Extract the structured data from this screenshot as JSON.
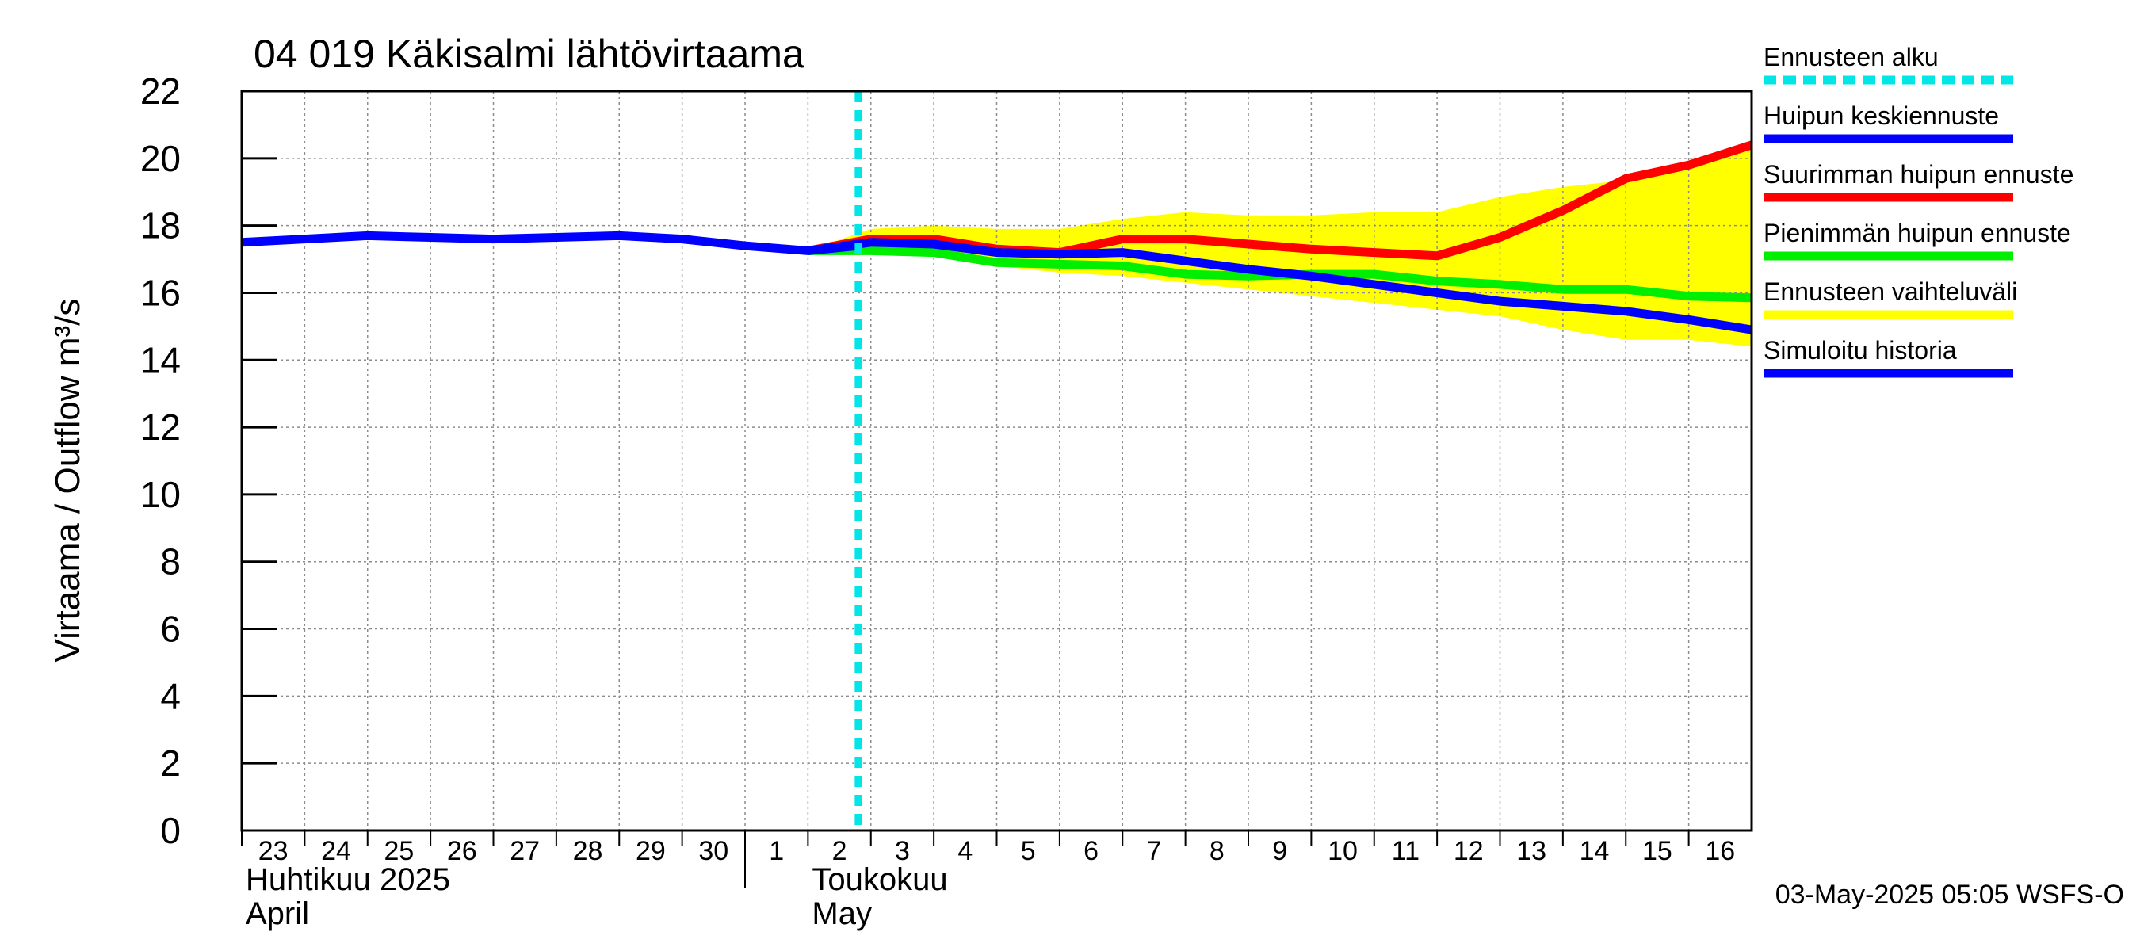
{
  "chart_data": {
    "type": "line",
    "title": "04 019 Käkisalmi lähtövirtaama",
    "ylabel": "Virtaama / Outflow    m³/s",
    "ylim": [
      0,
      22
    ],
    "yticks": [
      "0",
      "2",
      "4",
      "6",
      "8",
      "10",
      "12",
      "14",
      "16",
      "18",
      "20",
      "22"
    ],
    "x_days": [
      "23",
      "24",
      "25",
      "26",
      "27",
      "28",
      "29",
      "30",
      "1",
      "2",
      "3",
      "4",
      "5",
      "6",
      "7",
      "8",
      "9",
      "10",
      "11",
      "12",
      "13",
      "14",
      "15",
      "16"
    ],
    "month_labels": [
      {
        "fi": "Huhtikuu  2025",
        "en": "April"
      },
      {
        "fi": "Toukokuu",
        "en": "May"
      }
    ],
    "forecast_start_day_index": 9.8,
    "series": [
      {
        "name": "Ennusteen vaihteluväli",
        "kind": "band",
        "color": "#ffff00",
        "upper": [
          [
            9.0,
            17.25
          ],
          [
            10.0,
            17.9
          ],
          [
            11.0,
            18.0
          ],
          [
            12.0,
            17.9
          ],
          [
            13.0,
            17.9
          ],
          [
            14.0,
            18.2
          ],
          [
            15.0,
            18.4
          ],
          [
            16.0,
            18.3
          ],
          [
            17.0,
            18.3
          ],
          [
            18.0,
            18.4
          ],
          [
            19.0,
            18.4
          ],
          [
            20.0,
            18.85
          ],
          [
            21.0,
            19.15
          ],
          [
            22.0,
            19.35
          ],
          [
            23.0,
            19.9
          ],
          [
            24.0,
            20.5
          ]
        ],
        "lower": [
          [
            24.0,
            14.4
          ],
          [
            23.0,
            14.6
          ],
          [
            22.0,
            14.6
          ],
          [
            21.0,
            14.9
          ],
          [
            20.0,
            15.3
          ],
          [
            19.0,
            15.5
          ],
          [
            18.0,
            15.7
          ],
          [
            17.0,
            15.9
          ],
          [
            16.0,
            16.1
          ],
          [
            15.0,
            16.3
          ],
          [
            14.0,
            16.5
          ],
          [
            13.0,
            16.6
          ],
          [
            12.0,
            16.8
          ],
          [
            11.0,
            17.1
          ],
          [
            10.0,
            17.2
          ],
          [
            9.0,
            17.25
          ]
        ]
      },
      {
        "name": "Suurimman huipun ennuste",
        "kind": "line",
        "color": "#ff0000",
        "points": [
          [
            9.0,
            17.25
          ],
          [
            10.0,
            17.6
          ],
          [
            11.0,
            17.6
          ],
          [
            12.0,
            17.3
          ],
          [
            13.0,
            17.2
          ],
          [
            14.0,
            17.6
          ],
          [
            15.0,
            17.6
          ],
          [
            16.0,
            17.45
          ],
          [
            17.0,
            17.3
          ],
          [
            18.0,
            17.2
          ],
          [
            19.0,
            17.1
          ],
          [
            20.0,
            17.65
          ],
          [
            21.0,
            18.45
          ],
          [
            22.0,
            19.4
          ],
          [
            23.0,
            19.8
          ],
          [
            24.0,
            20.4
          ]
        ]
      },
      {
        "name": "Pienimmän huipun ennuste",
        "kind": "line",
        "color": "#00ee00",
        "points": [
          [
            9.0,
            17.25
          ],
          [
            10.0,
            17.25
          ],
          [
            11.0,
            17.2
          ],
          [
            12.0,
            16.9
          ],
          [
            13.0,
            16.85
          ],
          [
            14.0,
            16.8
          ],
          [
            15.0,
            16.55
          ],
          [
            16.0,
            16.5
          ],
          [
            17.0,
            16.55
          ],
          [
            18.0,
            16.55
          ],
          [
            19.0,
            16.35
          ],
          [
            20.0,
            16.25
          ],
          [
            21.0,
            16.1
          ],
          [
            22.0,
            16.1
          ],
          [
            23.0,
            15.9
          ],
          [
            24.0,
            15.85
          ]
        ]
      },
      {
        "name": "Huipun keskiennuste",
        "kind": "line",
        "color": "#0000ff",
        "points": [
          [
            9.0,
            17.25
          ],
          [
            10.0,
            17.5
          ],
          [
            11.0,
            17.45
          ],
          [
            12.0,
            17.2
          ],
          [
            13.0,
            17.15
          ],
          [
            14.0,
            17.2
          ],
          [
            15.0,
            16.95
          ],
          [
            16.0,
            16.7
          ],
          [
            17.0,
            16.5
          ],
          [
            18.0,
            16.25
          ],
          [
            19.0,
            16.0
          ],
          [
            20.0,
            15.75
          ],
          [
            21.0,
            15.6
          ],
          [
            22.0,
            15.45
          ],
          [
            23.0,
            15.2
          ],
          [
            24.0,
            14.9
          ]
        ]
      },
      {
        "name": "Simuloitu historia",
        "kind": "line",
        "color": "#0000ff",
        "points": [
          [
            0.0,
            17.5
          ],
          [
            1.0,
            17.6
          ],
          [
            2.0,
            17.7
          ],
          [
            3.0,
            17.65
          ],
          [
            4.0,
            17.6
          ],
          [
            5.0,
            17.65
          ],
          [
            6.0,
            17.7
          ],
          [
            7.0,
            17.6
          ],
          [
            8.0,
            17.4
          ],
          [
            9.0,
            17.25
          ],
          [
            9.8,
            17.4
          ]
        ]
      }
    ],
    "legend": [
      {
        "label": "Ennusteen alku",
        "color": "#00e5e5",
        "style": "dashed"
      },
      {
        "label": "Huipun keskiennuste",
        "color": "#0000ff",
        "style": "solid"
      },
      {
        "label": "Suurimman huipun ennuste",
        "color": "#ff0000",
        "style": "solid"
      },
      {
        "label": "Pienimmän huipun ennuste",
        "color": "#00ee00",
        "style": "solid"
      },
      {
        "label": "Ennusteen vaihteluväli",
        "color": "#ffff00",
        "style": "solid"
      },
      {
        "label": "Simuloitu historia",
        "color": "#0000ff",
        "style": "solid"
      }
    ],
    "legend_position": "right",
    "grid": true,
    "footer": "03-May-2025 05:05 WSFS-O"
  }
}
